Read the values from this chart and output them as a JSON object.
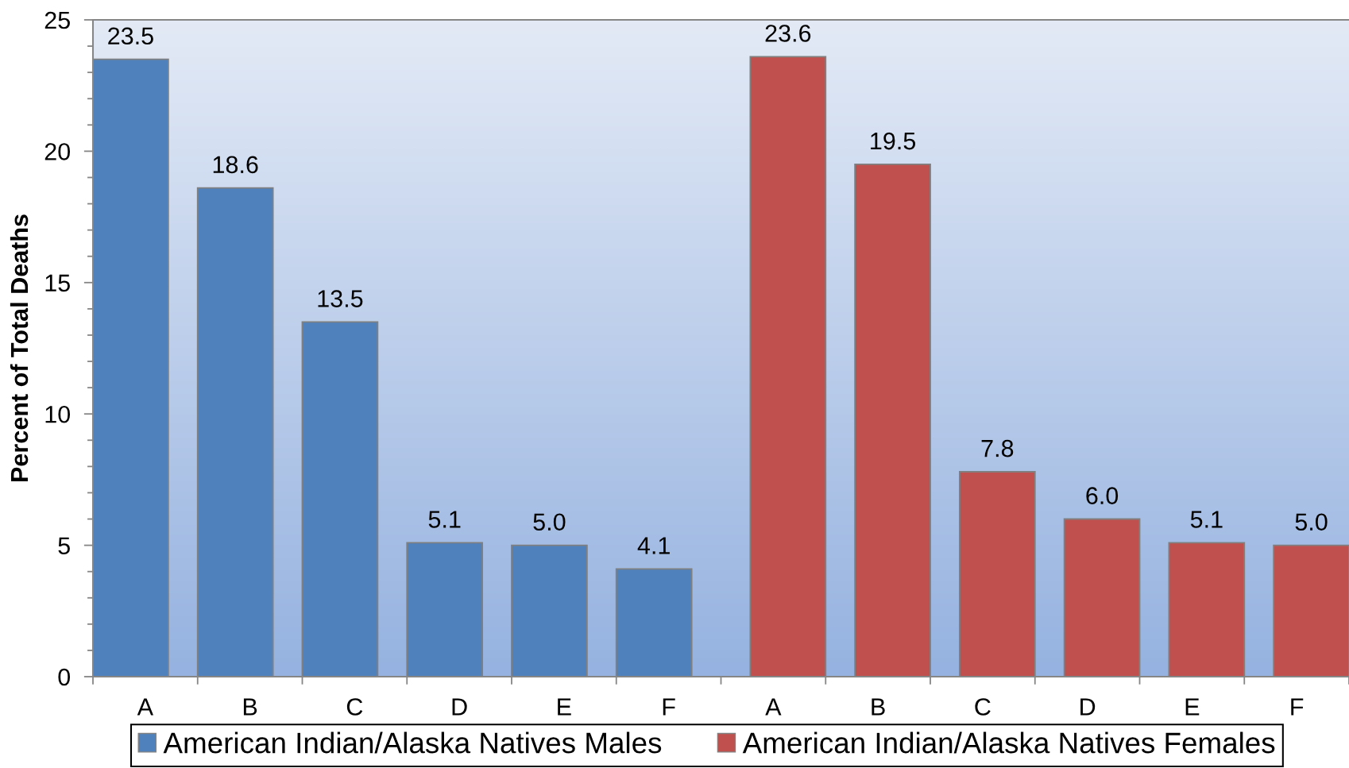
{
  "chart_data": {
    "type": "bar",
    "ylabel": "Percent of Total Deaths",
    "categories": [
      "A",
      "B",
      "C",
      "D",
      "E",
      "F",
      "A",
      "B",
      "C",
      "D",
      "E",
      "F"
    ],
    "series": [
      {
        "name": "American Indian/Alaska Natives Males",
        "color": "#4f81bd",
        "values": [
          23.5,
          18.6,
          13.5,
          5.1,
          5.0,
          4.1,
          null,
          null,
          null,
          null,
          null,
          null
        ],
        "value_labels": [
          "23.5",
          "18.6",
          "13.5",
          "5.1",
          "5.0",
          "4.1",
          null,
          null,
          null,
          null,
          null,
          null
        ]
      },
      {
        "name": "American Indian/Alaska Natives Females",
        "color": "#c0504d",
        "values": [
          null,
          null,
          null,
          null,
          null,
          null,
          23.6,
          19.5,
          7.8,
          6.0,
          5.1,
          5.0
        ],
        "value_labels": [
          null,
          null,
          null,
          null,
          null,
          null,
          "23.6",
          "19.5",
          "7.8",
          "6.0",
          "5.1",
          "5.0"
        ]
      }
    ],
    "ylim": [
      0,
      25
    ],
    "yticks": [
      0,
      {
        "value": 1,
        "label": null
      },
      {
        "value": 2,
        "label": null
      },
      {
        "value": 3,
        "label": null
      },
      {
        "value": 4,
        "label": null
      },
      5,
      {
        "value": 6,
        "label": null
      },
      {
        "value": 7,
        "label": null
      },
      {
        "value": 8,
        "label": null
      },
      {
        "value": 9,
        "label": null
      },
      10,
      {
        "value": 11,
        "label": null
      },
      {
        "value": 12,
        "label": null
      },
      {
        "value": 13,
        "label": null
      },
      {
        "value": 14,
        "label": null
      },
      15,
      {
        "value": 16,
        "label": null
      },
      {
        "value": 17,
        "label": null
      },
      {
        "value": 18,
        "label": null
      },
      {
        "value": 19,
        "label": null
      },
      20,
      {
        "value": 21,
        "label": null
      },
      {
        "value": 22,
        "label": null
      },
      {
        "value": 23,
        "label": null
      },
      {
        "value": 24,
        "label": null
      },
      25
    ],
    "grid": false,
    "legend": "bottom"
  }
}
